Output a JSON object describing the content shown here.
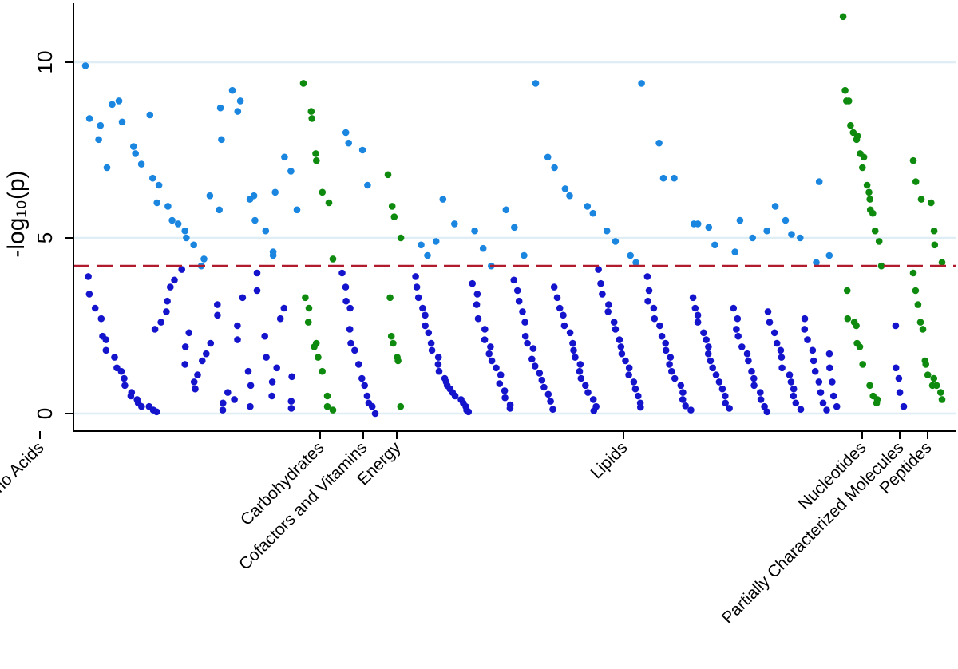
{
  "chart_data": {
    "type": "scatter",
    "ylabel": "-log₁₀(p)",
    "ylim": [
      -0.5,
      11.8
    ],
    "yticks": [
      0,
      5,
      10
    ],
    "grid": true,
    "threshold": 4.2,
    "colors": {
      "nonsignificant": "#1414cc",
      "significant_blue": "#1a86e0",
      "green": "#0e8a0e",
      "threshold": "#b01c2e",
      "grid": "#dfeef4",
      "axis": "#000000"
    },
    "categories": [
      {
        "name": "Amino Acids",
        "tick_x": 50,
        "color": "blue",
        "sig": [
          9.9,
          8.4,
          8.2,
          7.8,
          7.0,
          8.8,
          8.9,
          8.3,
          7.6,
          7.4,
          7.1,
          8.5,
          6.7,
          6.5,
          6.0,
          5.9,
          5.5,
          5.4,
          5.2,
          5.0,
          4.8,
          4.4,
          4.2,
          6.2,
          5.8,
          7.8,
          8.7,
          9.2,
          8.6,
          8.9,
          6.1,
          6.2,
          5.5,
          5.2,
          4.6,
          4.5,
          6.3,
          7.3,
          6.9,
          5.8
        ],
        "ns": [
          3.9,
          3.4,
          3.0,
          2.7,
          2.2,
          2.1,
          1.8,
          1.6,
          1.3,
          1.2,
          1.0,
          0.8,
          0.6,
          0.5,
          0.4,
          0.3,
          0.2,
          0.2,
          0.1,
          0.05,
          2.4,
          2.6,
          2.9,
          3.2,
          3.6,
          3.8,
          4.1,
          1.4,
          1.9,
          2.3,
          0.7,
          0.9,
          1.1,
          1.5,
          1.7,
          2.0,
          2.8,
          3.1,
          0.3,
          0.1,
          0.6,
          0.4,
          2.1,
          2.5,
          3.3,
          1.2,
          0.8,
          0.2,
          3.5,
          4.0,
          2.2,
          1.6,
          0.5,
          0.9,
          1.3,
          2.7,
          3.0,
          0.15,
          0.35,
          1.05
        ]
      },
      {
        "name": "Carbohydrates",
        "tick_x": 401,
        "color": "green",
        "sig": [
          9.4,
          8.6,
          8.4,
          7.4,
          7.2,
          6.3,
          6.0,
          4.4
        ],
        "ns": [
          3.3,
          3.0,
          2.6,
          2.0,
          1.9,
          1.6,
          1.2,
          0.5,
          0.2,
          0.1
        ]
      },
      {
        "name": "Cofactors and Vitamins",
        "tick_x": 455,
        "color": "blue",
        "sig": [
          8.0,
          7.7,
          7.5,
          6.5
        ],
        "ns": [
          4.0,
          3.6,
          3.2,
          3.0,
          2.4,
          2.0,
          1.8,
          1.4,
          1.0,
          0.8,
          0.5,
          0.3,
          0.2,
          0.0
        ]
      },
      {
        "name": "Energy",
        "tick_x": 497,
        "color": "green",
        "sig": [
          6.8,
          5.9,
          5.6,
          5.0
        ],
        "ns": [
          3.3,
          2.2,
          2.0,
          1.6,
          1.5,
          0.2
        ]
      },
      {
        "name": "Lipids",
        "tick_x": 781,
        "color": "blue",
        "sig": [
          4.8,
          4.5,
          4.9,
          6.1,
          5.4,
          5.2,
          4.7,
          4.2,
          5.8,
          5.3,
          4.5,
          9.4,
          7.3,
          7.0,
          6.4,
          6.2,
          5.9,
          5.7,
          5.2,
          4.9,
          4.5,
          4.3,
          9.4,
          7.7,
          6.7,
          6.7,
          5.4,
          5.4,
          5.3,
          4.8,
          4.6,
          5.5,
          5.0,
          5.2,
          5.9,
          5.5,
          5.1,
          5.0,
          4.3,
          6.6,
          4.5
        ],
        "ns": [
          3.9,
          3.6,
          3.3,
          3.0,
          2.8,
          2.5,
          2.3,
          2.0,
          1.8,
          1.6,
          1.4,
          1.2,
          1.0,
          0.9,
          0.8,
          0.7,
          0.6,
          0.5,
          0.4,
          0.3,
          0.2,
          0.1,
          0.05,
          3.7,
          3.4,
          3.1,
          2.7,
          2.4,
          2.1,
          1.9,
          1.7,
          1.5,
          1.3,
          1.1,
          0.85,
          0.65,
          0.45,
          0.25,
          0.15,
          3.8,
          3.5,
          3.2,
          2.9,
          2.6,
          2.2,
          2.0,
          1.85,
          1.55,
          1.35,
          1.15,
          0.95,
          0.75,
          0.55,
          0.35,
          0.12,
          3.6,
          3.3,
          3.0,
          2.8,
          2.5,
          2.3,
          2.0,
          1.8,
          1.6,
          1.4,
          1.2,
          1.0,
          0.8,
          0.6,
          0.4,
          0.2,
          0.08,
          4.1,
          3.7,
          3.4,
          3.1,
          2.9,
          2.6,
          2.4,
          2.1,
          1.9,
          1.7,
          1.5,
          1.3,
          1.1,
          0.9,
          0.7,
          0.5,
          0.3,
          0.18,
          3.9,
          3.5,
          3.2,
          3.0,
          2.7,
          2.5,
          2.2,
          2.0,
          1.8,
          1.6,
          1.4,
          1.2,
          1.0,
          0.8,
          0.6,
          0.4,
          0.22,
          0.1,
          3.3,
          3.0,
          2.8,
          2.6,
          2.3,
          2.1,
          1.9,
          1.7,
          1.5,
          1.3,
          1.1,
          0.9,
          0.7,
          0.5,
          0.3,
          0.15,
          3.0,
          2.7,
          2.4,
          2.2,
          1.9,
          1.7,
          1.5,
          1.2,
          1.0,
          0.8,
          0.6,
          0.4,
          0.2,
          0.05,
          2.9,
          2.6,
          2.3,
          2.0,
          1.8,
          1.6,
          1.3,
          1.1,
          0.9,
          0.7,
          0.5,
          0.3,
          0.12,
          2.7,
          2.4,
          2.1,
          1.8,
          1.5,
          1.2,
          0.9,
          0.6,
          0.3,
          0.1,
          1.7,
          1.3,
          0.9,
          0.5,
          0.2
        ]
      },
      {
        "name": "Nucleotides",
        "tick_x": 1080,
        "color": "green",
        "sig": [
          11.3,
          9.2,
          8.9,
          8.9,
          8.2,
          8.0,
          7.9,
          7.8,
          7.4,
          7.3,
          7.0,
          6.5,
          6.3,
          6.1,
          5.8,
          5.7,
          5.2,
          4.9,
          4.2
        ],
        "ns": [
          3.5,
          2.7,
          2.6,
          2.5,
          2.0,
          1.9,
          1.4,
          0.8,
          0.5,
          0.4,
          0.3
        ]
      },
      {
        "name": "Partially Characterized Molecules",
        "tick_x": 1127,
        "color": "blue",
        "sig": [],
        "ns": [
          2.5,
          1.3,
          1.0,
          0.6,
          0.2
        ]
      },
      {
        "name": "Peptides",
        "tick_x": 1162,
        "color": "green",
        "sig": [
          7.2,
          6.6,
          6.1,
          6.0,
          5.2,
          4.8,
          4.3
        ],
        "ns": [
          4.0,
          3.5,
          3.1,
          2.6,
          2.4,
          1.5,
          1.4,
          1.1,
          1.0,
          0.8,
          0.8,
          0.6,
          0.4
        ]
      }
    ]
  }
}
